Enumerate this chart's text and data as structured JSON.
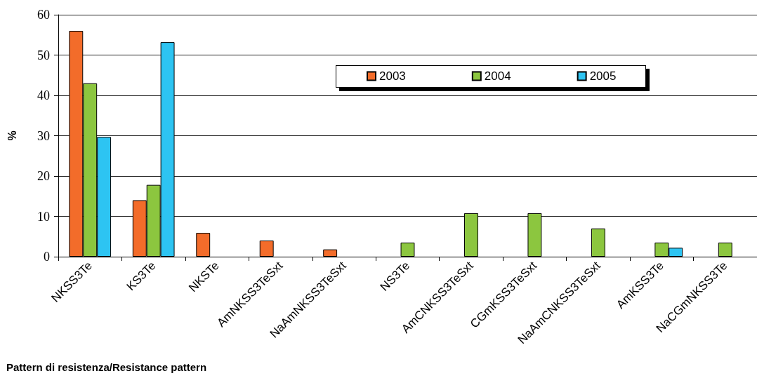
{
  "chart_data": {
    "type": "bar",
    "xlabel": "Pattern di resistenza/Resistance pattern",
    "ylabel": "%",
    "categories": [
      "NKSS3Te",
      "KS3Te",
      "NKSTe",
      "AmNKSS3TeSxt",
      "NaAmNKSS3TeSxt",
      "NS3Te",
      "AmCNKSS3TeSxt",
      "CGmKSS3TeSxt",
      "NaAmCNKSS3TeSxt",
      "AmKSS3Te",
      "NaCGmNKSS3Te"
    ],
    "series": [
      {
        "name": "2003",
        "color": "#f36c2a",
        "values": [
          56,
          14,
          5.9,
          4,
          1.8,
          null,
          null,
          null,
          null,
          null,
          null
        ]
      },
      {
        "name": "2004",
        "color": "#8cc63f",
        "values": [
          43,
          17.8,
          null,
          null,
          null,
          3.5,
          10.8,
          10.8,
          7,
          3.5,
          3.5
        ]
      },
      {
        "name": "2005",
        "color": "#2dc4f2",
        "values": [
          29.7,
          53.2,
          null,
          null,
          null,
          null,
          null,
          null,
          null,
          2.2,
          null
        ]
      }
    ],
    "ylim": [
      0,
      60
    ],
    "yticks": [
      0,
      10,
      20,
      30,
      40,
      50,
      60
    ],
    "grid": "y",
    "legend": "top right"
  }
}
